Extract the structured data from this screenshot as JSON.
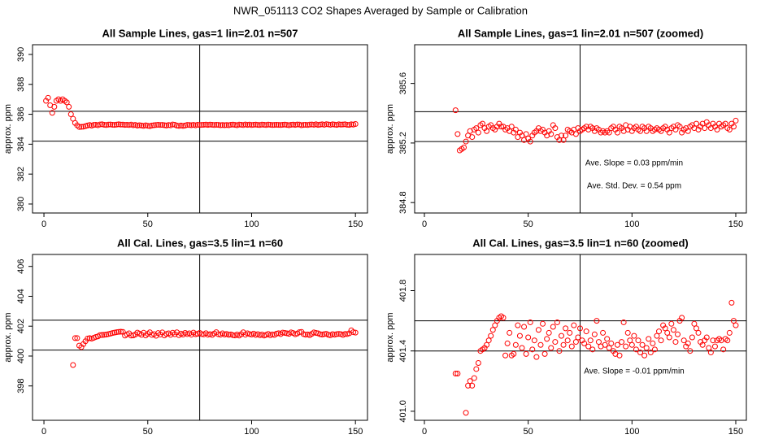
{
  "title": "NWR_051113  CO2 Shapes Averaged by Sample or Calibration",
  "chart_data": [
    {
      "type": "scatter",
      "title": "All Sample Lines, gas=1 lin=2.01 n=507",
      "y_label": "approx. ppm",
      "color": "#ff0000",
      "xlim": [
        -5.5,
        155.8
      ],
      "xticks": [
        0,
        50,
        100,
        150
      ],
      "ylim": [
        379.4,
        390.65
      ],
      "yticks": [
        380,
        382,
        384,
        386,
        388,
        390
      ],
      "hlines": [
        386.2,
        384.2
      ],
      "vlines": [
        75
      ],
      "x": [
        1,
        2,
        3,
        4,
        5,
        6,
        7,
        8,
        9,
        10,
        11,
        12,
        13,
        14,
        15,
        16,
        17,
        18,
        19,
        20,
        21,
        22,
        23,
        24,
        25,
        26,
        27,
        28,
        29,
        30,
        31,
        32,
        33,
        34,
        35,
        36,
        37,
        38,
        39,
        40,
        41,
        42,
        43,
        44,
        45,
        46,
        47,
        48,
        49,
        50,
        51,
        52,
        53,
        54,
        55,
        56,
        57,
        58,
        59,
        60,
        61,
        62,
        63,
        64,
        65,
        66,
        67,
        68,
        69,
        70,
        71,
        72,
        73,
        74,
        75,
        76,
        77,
        78,
        79,
        80,
        81,
        82,
        83,
        84,
        85,
        86,
        87,
        88,
        89,
        90,
        91,
        92,
        93,
        94,
        95,
        96,
        97,
        98,
        99,
        100,
        101,
        102,
        103,
        104,
        105,
        106,
        107,
        108,
        109,
        110,
        111,
        112,
        113,
        114,
        115,
        116,
        117,
        118,
        119,
        120,
        121,
        122,
        123,
        124,
        125,
        126,
        127,
        128,
        129,
        130,
        131,
        132,
        133,
        134,
        135,
        136,
        137,
        138,
        139,
        140,
        141,
        142,
        143,
        144,
        145,
        146,
        147,
        148,
        149,
        150
      ],
      "values": [
        386.9,
        387.1,
        386.6,
        386.1,
        386.5,
        386.9,
        387.0,
        386.9,
        387.0,
        386.9,
        386.8,
        386.5,
        386.0,
        385.7,
        385.42,
        385.26,
        385.15,
        385.16,
        385.17,
        385.21,
        385.25,
        385.28,
        385.24,
        385.29,
        385.3,
        385.27,
        385.32,
        385.33,
        385.3,
        385.28,
        385.31,
        385.32,
        385.3,
        385.29,
        385.31,
        385.33,
        385.31,
        385.31,
        385.29,
        385.3,
        385.28,
        385.31,
        385.27,
        385.29,
        385.24,
        385.27,
        385.25,
        385.22,
        385.26,
        385.23,
        385.21,
        385.25,
        385.27,
        385.28,
        385.3,
        385.28,
        385.29,
        385.27,
        385.25,
        385.28,
        385.26,
        385.32,
        385.3,
        385.24,
        385.22,
        385.25,
        385.22,
        385.25,
        385.29,
        385.28,
        385.27,
        385.29,
        385.26,
        385.3,
        385.28,
        385.29,
        385.3,
        385.31,
        385.29,
        385.31,
        385.3,
        385.28,
        385.3,
        385.29,
        385.27,
        385.28,
        385.27,
        385.28,
        385.27,
        385.3,
        385.31,
        385.29,
        385.27,
        385.31,
        385.3,
        385.28,
        385.32,
        385.29,
        385.31,
        385.28,
        385.3,
        385.31,
        385.29,
        385.28,
        385.31,
        385.3,
        385.28,
        385.31,
        385.3,
        385.28,
        385.29,
        385.3,
        385.29,
        385.28,
        385.3,
        385.31,
        385.29,
        385.27,
        385.3,
        385.31,
        385.29,
        385.32,
        385.31,
        385.27,
        385.29,
        385.3,
        385.28,
        385.31,
        385.32,
        385.3,
        385.33,
        385.29,
        385.31,
        385.33,
        385.3,
        385.34,
        385.32,
        385.3,
        385.33,
        385.31,
        385.29,
        385.33,
        385.31,
        385.32,
        385.33,
        385.3,
        385.29,
        385.33,
        385.31,
        385.35
      ]
    },
    {
      "type": "scatter",
      "title": "All Sample Lines, gas=1 lin=2.01 n=507 (zoomed)",
      "y_label": "approx. ppm",
      "color": "#ff0000",
      "xlim": [
        -4.7,
        155.1
      ],
      "xticks": [
        0,
        50,
        100,
        150
      ],
      "ylim": [
        384.73,
        385.86
      ],
      "yticks": [
        384.8,
        385.2,
        385.6
      ],
      "hlines": [
        385.41,
        385.21
      ],
      "vlines": [
        75
      ],
      "annotations": [
        "Ave. Slope =  0.03  ppm/min",
        "Ave. Std. Dev. =  0.54  ppm"
      ],
      "x": [
        15,
        16,
        17,
        18,
        19,
        20,
        21,
        22,
        23,
        24,
        25,
        26,
        27,
        28,
        29,
        30,
        31,
        32,
        33,
        34,
        35,
        36,
        37,
        38,
        39,
        40,
        41,
        42,
        43,
        44,
        45,
        46,
        47,
        48,
        49,
        50,
        51,
        52,
        53,
        54,
        55,
        56,
        57,
        58,
        59,
        60,
        61,
        62,
        63,
        64,
        65,
        66,
        67,
        68,
        69,
        70,
        71,
        72,
        73,
        74,
        75,
        76,
        77,
        78,
        79,
        80,
        81,
        82,
        83,
        84,
        85,
        86,
        87,
        88,
        89,
        90,
        91,
        92,
        93,
        94,
        95,
        96,
        97,
        98,
        99,
        100,
        101,
        102,
        103,
        104,
        105,
        106,
        107,
        108,
        109,
        110,
        111,
        112,
        113,
        114,
        115,
        116,
        117,
        118,
        119,
        120,
        121,
        122,
        123,
        124,
        125,
        126,
        127,
        128,
        129,
        130,
        131,
        132,
        133,
        134,
        135,
        136,
        137,
        138,
        139,
        140,
        141,
        142,
        143,
        144,
        145,
        146,
        147,
        148,
        149,
        150
      ],
      "values": [
        385.42,
        385.26,
        385.15,
        385.16,
        385.17,
        385.21,
        385.25,
        385.28,
        385.24,
        385.29,
        385.3,
        385.27,
        385.32,
        385.33,
        385.3,
        385.28,
        385.31,
        385.32,
        385.3,
        385.29,
        385.31,
        385.33,
        385.31,
        385.31,
        385.29,
        385.3,
        385.28,
        385.31,
        385.27,
        385.29,
        385.24,
        385.27,
        385.25,
        385.22,
        385.26,
        385.23,
        385.21,
        385.25,
        385.27,
        385.28,
        385.3,
        385.28,
        385.29,
        385.27,
        385.25,
        385.28,
        385.26,
        385.32,
        385.3,
        385.24,
        385.22,
        385.25,
        385.22,
        385.25,
        385.29,
        385.28,
        385.27,
        385.29,
        385.26,
        385.3,
        385.28,
        385.29,
        385.3,
        385.31,
        385.29,
        385.31,
        385.3,
        385.28,
        385.3,
        385.29,
        385.27,
        385.28,
        385.27,
        385.28,
        385.27,
        385.3,
        385.31,
        385.29,
        385.27,
        385.31,
        385.3,
        385.28,
        385.32,
        385.29,
        385.31,
        385.28,
        385.3,
        385.31,
        385.29,
        385.28,
        385.31,
        385.3,
        385.28,
        385.31,
        385.3,
        385.28,
        385.29,
        385.3,
        385.29,
        385.28,
        385.3,
        385.31,
        385.29,
        385.27,
        385.3,
        385.31,
        385.29,
        385.32,
        385.31,
        385.27,
        385.29,
        385.3,
        385.28,
        385.31,
        385.32,
        385.3,
        385.33,
        385.29,
        385.31,
        385.33,
        385.3,
        385.34,
        385.32,
        385.3,
        385.33,
        385.31,
        385.29,
        385.33,
        385.31,
        385.32,
        385.33,
        385.3,
        385.29,
        385.33,
        385.31,
        385.35
      ]
    },
    {
      "type": "scatter",
      "title": "All Cal. Lines, gas=3.5 lin=1 n=60",
      "y_label": "approx. ppm",
      "color": "#ff0000",
      "xlim": [
        -5.5,
        155.8
      ],
      "xticks": [
        0,
        50,
        100,
        150
      ],
      "ylim": [
        395.7,
        406.8
      ],
      "yticks": [
        398,
        400,
        402,
        404,
        406
      ],
      "hlines": [
        402.4,
        400.4
      ],
      "vlines": [
        75
      ],
      "x": [
        14,
        15,
        16,
        17,
        18,
        19,
        20,
        21,
        22,
        23,
        24,
        25,
        26,
        27,
        28,
        29,
        30,
        31,
        32,
        33,
        34,
        35,
        36,
        37,
        38,
        39,
        40,
        41,
        42,
        43,
        44,
        45,
        46,
        47,
        48,
        49,
        50,
        51,
        52,
        53,
        54,
        55,
        56,
        57,
        58,
        59,
        60,
        61,
        62,
        63,
        64,
        65,
        66,
        67,
        68,
        69,
        70,
        71,
        72,
        73,
        74,
        75,
        76,
        77,
        78,
        79,
        80,
        81,
        82,
        83,
        84,
        85,
        86,
        87,
        88,
        89,
        90,
        91,
        92,
        93,
        94,
        95,
        96,
        97,
        98,
        99,
        100,
        101,
        102,
        103,
        104,
        105,
        106,
        107,
        108,
        109,
        110,
        111,
        112,
        113,
        114,
        115,
        116,
        117,
        118,
        119,
        120,
        121,
        122,
        123,
        124,
        125,
        126,
        127,
        128,
        129,
        130,
        131,
        132,
        133,
        134,
        135,
        136,
        137,
        138,
        139,
        140,
        141,
        142,
        143,
        144,
        145,
        146,
        147,
        148,
        149,
        150
      ],
      "values": [
        399.4,
        401.2,
        401.2,
        400.7,
        400.6,
        400.8,
        400.99,
        401.17,
        401.2,
        401.17,
        401.22,
        401.28,
        401.32,
        401.4,
        401.41,
        401.42,
        401.44,
        401.47,
        401.5,
        401.54,
        401.57,
        401.6,
        401.62,
        401.63,
        401.62,
        401.37,
        401.45,
        401.52,
        401.37,
        401.38,
        401.44,
        401.57,
        401.5,
        401.42,
        401.56,
        401.38,
        401.49,
        401.59,
        401.41,
        401.47,
        401.36,
        401.54,
        401.44,
        401.58,
        401.38,
        401.48,
        401.52,
        401.42,
        401.56,
        401.46,
        401.59,
        401.4,
        401.5,
        401.44,
        401.55,
        401.47,
        401.52,
        401.43,
        401.57,
        401.46,
        401.49,
        401.55,
        401.47,
        401.45,
        401.53,
        401.43,
        401.47,
        401.41,
        401.51,
        401.6,
        401.46,
        401.43,
        401.52,
        401.44,
        401.48,
        401.42,
        401.45,
        401.4,
        401.38,
        401.44,
        401.37,
        401.46,
        401.59,
        401.43,
        401.52,
        401.47,
        401.44,
        401.5,
        401.41,
        401.47,
        401.39,
        401.44,
        401.37,
        401.42,
        401.48,
        401.39,
        401.45,
        401.41,
        401.5,
        401.53,
        401.47,
        401.57,
        401.55,
        401.52,
        401.49,
        401.58,
        401.54,
        401.46,
        401.51,
        401.6,
        401.62,
        401.47,
        401.43,
        401.45,
        401.4,
        401.49,
        401.58,
        401.55,
        401.52,
        401.46,
        401.44,
        401.47,
        401.49,
        401.42,
        401.39,
        401.47,
        401.43,
        401.47,
        401.48,
        401.47,
        401.41,
        401.48,
        401.47,
        401.52,
        401.72,
        401.6,
        401.57
      ]
    },
    {
      "type": "scatter",
      "title": "All Cal. Lines, gas=3.5 lin=1 n=60 (zoomed)",
      "y_label": "approx. ppm",
      "color": "#ff0000",
      "xlim": [
        -4.7,
        155.1
      ],
      "xticks": [
        0,
        50,
        100,
        150
      ],
      "ylim": [
        400.94,
        402.04
      ],
      "yticks": [
        {
          "value": 401,
          "label": "401.0"
        },
        401.4,
        401.8
      ],
      "hlines": [
        401.6,
        401.4
      ],
      "vlines": [
        75
      ],
      "annotations": [
        "Ave. Slope =  -0.01  ppm/min"
      ],
      "x": [
        15,
        16,
        20,
        21,
        22,
        23,
        24,
        25,
        26,
        27,
        28,
        29,
        30,
        31,
        32,
        33,
        34,
        35,
        36,
        37,
        38,
        39,
        40,
        41,
        42,
        43,
        44,
        45,
        46,
        47,
        48,
        49,
        50,
        51,
        52,
        53,
        54,
        55,
        56,
        57,
        58,
        59,
        60,
        61,
        62,
        63,
        64,
        65,
        66,
        67,
        68,
        69,
        70,
        71,
        72,
        73,
        74,
        75,
        76,
        77,
        78,
        79,
        80,
        81,
        82,
        83,
        84,
        85,
        86,
        87,
        88,
        89,
        90,
        91,
        92,
        93,
        94,
        95,
        96,
        97,
        98,
        99,
        100,
        101,
        102,
        103,
        104,
        105,
        106,
        107,
        108,
        109,
        110,
        111,
        112,
        113,
        114,
        115,
        116,
        117,
        118,
        119,
        120,
        121,
        122,
        123,
        124,
        125,
        126,
        127,
        128,
        129,
        130,
        131,
        132,
        133,
        134,
        135,
        136,
        137,
        138,
        139,
        140,
        141,
        142,
        143,
        144,
        145,
        146,
        147,
        148,
        149,
        150
      ],
      "values": [
        401.25,
        401.25,
        400.99,
        401.17,
        401.2,
        401.17,
        401.22,
        401.28,
        401.32,
        401.4,
        401.41,
        401.42,
        401.44,
        401.47,
        401.5,
        401.54,
        401.57,
        401.6,
        401.62,
        401.63,
        401.62,
        401.37,
        401.45,
        401.52,
        401.37,
        401.38,
        401.44,
        401.57,
        401.5,
        401.42,
        401.56,
        401.38,
        401.49,
        401.59,
        401.41,
        401.47,
        401.36,
        401.54,
        401.44,
        401.58,
        401.38,
        401.48,
        401.52,
        401.42,
        401.56,
        401.46,
        401.59,
        401.4,
        401.5,
        401.44,
        401.55,
        401.47,
        401.52,
        401.43,
        401.57,
        401.46,
        401.49,
        401.55,
        401.47,
        401.45,
        401.53,
        401.43,
        401.47,
        401.41,
        401.51,
        401.6,
        401.46,
        401.43,
        401.52,
        401.44,
        401.48,
        401.42,
        401.45,
        401.4,
        401.38,
        401.44,
        401.37,
        401.46,
        401.59,
        401.43,
        401.52,
        401.47,
        401.44,
        401.5,
        401.41,
        401.47,
        401.39,
        401.44,
        401.37,
        401.42,
        401.48,
        401.39,
        401.45,
        401.41,
        401.5,
        401.53,
        401.47,
        401.57,
        401.55,
        401.52,
        401.49,
        401.58,
        401.54,
        401.46,
        401.51,
        401.6,
        401.62,
        401.47,
        401.43,
        401.45,
        401.4,
        401.49,
        401.58,
        401.55,
        401.52,
        401.46,
        401.44,
        401.47,
        401.49,
        401.42,
        401.39,
        401.47,
        401.43,
        401.47,
        401.48,
        401.47,
        401.41,
        401.48,
        401.47,
        401.52,
        401.72,
        401.6,
        401.57
      ]
    }
  ]
}
